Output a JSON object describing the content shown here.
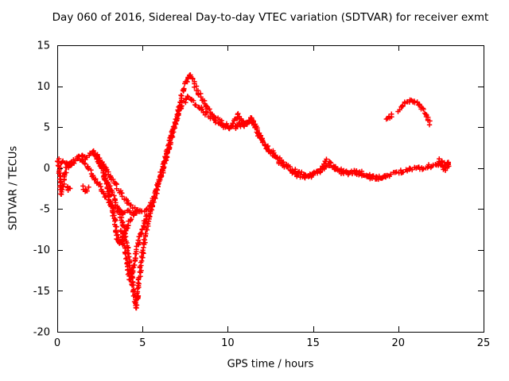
{
  "chart_data": {
    "type": "scatter",
    "title": "Day 060 of 2016, Sidereal Day-to-day VTEC variation (SDTVAR) for receiver exmt",
    "xlabel": "GPS time / hours",
    "ylabel": "SDTVAR / TECUs",
    "xlim": [
      0,
      25
    ],
    "ylim": [
      -20,
      15
    ],
    "xticks": [
      0,
      5,
      10,
      15,
      20,
      25
    ],
    "yticks": [
      -20,
      -15,
      -10,
      -5,
      0,
      5,
      10,
      15
    ],
    "grid": false,
    "legend": "none",
    "marker": "plus",
    "color": "#ff0000",
    "axis_color": "#000000",
    "series": [
      {
        "name": "upper-main-trace",
        "jitter": 2.4,
        "points": [
          [
            0.1,
            0.3
          ],
          [
            0.3,
            0.9
          ],
          [
            0.5,
            0.6
          ],
          [
            0.7,
            0.1
          ],
          [
            0.9,
            0.6
          ],
          [
            1.1,
            1.0
          ],
          [
            1.3,
            1.3
          ],
          [
            1.5,
            1.6
          ],
          [
            1.7,
            1.2
          ],
          [
            1.9,
            1.6
          ],
          [
            2.1,
            2.0
          ],
          [
            2.3,
            1.6
          ],
          [
            2.5,
            1.0
          ],
          [
            2.7,
            0.4
          ],
          [
            2.9,
            -0.2
          ],
          [
            3.1,
            -1.0
          ],
          [
            3.4,
            -2.0
          ],
          [
            3.7,
            -3.0
          ],
          [
            4.0,
            -3.8
          ],
          [
            4.3,
            -4.6
          ],
          [
            4.6,
            -5.1
          ],
          [
            4.9,
            -5.4
          ],
          [
            5.2,
            -5.2
          ],
          [
            5.5,
            -4.4
          ],
          [
            5.8,
            -3.0
          ],
          [
            6.0,
            -1.6
          ],
          [
            6.2,
            -0.2
          ],
          [
            6.4,
            1.4
          ],
          [
            6.6,
            3.0
          ],
          [
            6.8,
            4.6
          ],
          [
            7.0,
            6.2
          ],
          [
            7.2,
            7.8
          ],
          [
            7.4,
            9.4
          ],
          [
            7.6,
            10.6
          ],
          [
            7.75,
            11.4
          ],
          [
            7.9,
            11.0
          ],
          [
            8.1,
            10.1
          ],
          [
            8.3,
            9.1
          ],
          [
            8.6,
            8.0
          ],
          [
            8.9,
            7.0
          ],
          [
            9.2,
            6.3
          ],
          [
            9.5,
            5.8
          ],
          [
            9.8,
            5.3
          ],
          [
            10.1,
            5.0
          ],
          [
            10.4,
            5.1
          ],
          [
            10.7,
            5.3
          ],
          [
            11.0,
            5.2
          ],
          [
            11.2,
            5.6
          ],
          [
            11.4,
            6.0
          ],
          [
            11.6,
            5.3
          ],
          [
            11.8,
            4.3
          ],
          [
            12.0,
            3.4
          ],
          [
            12.3,
            2.6
          ],
          [
            12.6,
            1.8
          ],
          [
            12.9,
            1.1
          ],
          [
            13.2,
            0.5
          ],
          [
            13.5,
            0.0
          ],
          [
            13.8,
            -0.5
          ],
          [
            14.1,
            -0.8
          ],
          [
            14.5,
            -1.0
          ],
          [
            14.9,
            -0.9
          ],
          [
            15.3,
            -0.5
          ],
          [
            15.6,
            0.2
          ],
          [
            15.8,
            0.9
          ],
          [
            16.0,
            0.6
          ],
          [
            16.3,
            0.1
          ],
          [
            16.6,
            -0.3
          ],
          [
            17.0,
            -0.5
          ],
          [
            17.4,
            -0.4
          ],
          [
            17.8,
            -0.6
          ],
          [
            18.2,
            -0.9
          ],
          [
            18.6,
            -1.1
          ],
          [
            19.0,
            -1.1
          ],
          [
            19.4,
            -0.9
          ],
          [
            19.8,
            -0.6
          ],
          [
            20.2,
            -0.4
          ],
          [
            20.6,
            -0.2
          ],
          [
            21.0,
            -0.1
          ],
          [
            21.4,
            0.0
          ],
          [
            21.8,
            0.2
          ],
          [
            22.2,
            0.4
          ],
          [
            22.6,
            0.7
          ],
          [
            22.9,
            0.5
          ]
        ]
      },
      {
        "name": "deep-dip-trace",
        "jitter": 2.2,
        "points": [
          [
            2.1,
            1.8
          ],
          [
            2.4,
            0.8
          ],
          [
            2.7,
            -0.4
          ],
          [
            3.0,
            -1.8
          ],
          [
            3.2,
            -2.9
          ],
          [
            3.4,
            -4.0
          ],
          [
            3.6,
            -5.2
          ],
          [
            3.8,
            -6.6
          ],
          [
            4.0,
            -8.4
          ],
          [
            4.2,
            -10.8
          ],
          [
            4.4,
            -13.8
          ],
          [
            4.55,
            -16.2
          ],
          [
            4.62,
            -17.2
          ],
          [
            4.72,
            -15.4
          ],
          [
            4.85,
            -12.8
          ],
          [
            5.0,
            -10.4
          ],
          [
            5.15,
            -8.4
          ],
          [
            5.3,
            -6.8
          ],
          [
            5.5,
            -5.1
          ],
          [
            5.7,
            -3.6
          ],
          [
            5.9,
            -2.1
          ],
          [
            6.1,
            -0.6
          ],
          [
            6.3,
            0.9
          ],
          [
            6.5,
            2.4
          ],
          [
            6.7,
            3.9
          ],
          [
            6.9,
            5.3
          ],
          [
            7.1,
            6.5
          ],
          [
            7.3,
            7.5
          ],
          [
            7.5,
            8.2
          ],
          [
            7.7,
            8.6
          ],
          [
            7.9,
            8.3
          ],
          [
            8.1,
            7.9
          ],
          [
            8.4,
            7.3
          ],
          [
            8.7,
            6.7
          ],
          [
            9.0,
            6.1
          ],
          [
            9.3,
            5.7
          ],
          [
            9.6,
            5.3
          ],
          [
            9.9,
            5.0
          ],
          [
            10.2,
            4.9
          ],
          [
            10.5,
            5.0
          ],
          [
            10.8,
            5.2
          ],
          [
            11.1,
            5.4
          ],
          [
            11.4,
            5.7
          ],
          [
            11.6,
            5.0
          ],
          [
            11.8,
            4.1
          ],
          [
            12.0,
            3.3
          ],
          [
            12.3,
            2.5
          ],
          [
            12.6,
            1.9
          ],
          [
            12.9,
            1.3
          ],
          [
            13.2,
            0.8
          ],
          [
            13.5,
            0.3
          ],
          [
            13.8,
            -0.1
          ],
          [
            14.1,
            -0.5
          ],
          [
            14.5,
            -0.8
          ],
          [
            14.9,
            -0.8
          ],
          [
            15.3,
            -0.4
          ],
          [
            15.7,
            0.1
          ],
          [
            16.0,
            0.3
          ],
          [
            16.3,
            -0.1
          ],
          [
            16.7,
            -0.5
          ],
          [
            17.1,
            -0.6
          ],
          [
            17.5,
            -0.5
          ],
          [
            17.9,
            -0.8
          ],
          [
            18.3,
            -1.1
          ],
          [
            18.7,
            -1.2
          ],
          [
            19.1,
            -1.2
          ],
          [
            19.5,
            -1.0
          ]
        ]
      },
      {
        "name": "mid-dip-branch",
        "jitter": 2.2,
        "points": [
          [
            2.3,
            1.5
          ],
          [
            2.6,
            0.2
          ],
          [
            2.8,
            -1.4
          ],
          [
            3.0,
            -3.0
          ],
          [
            3.2,
            -4.6
          ],
          [
            3.35,
            -6.2
          ],
          [
            3.45,
            -7.6
          ],
          [
            3.55,
            -8.7
          ],
          [
            3.65,
            -9.2
          ],
          [
            3.8,
            -8.9
          ],
          [
            3.95,
            -8.2
          ],
          [
            4.1,
            -7.3
          ],
          [
            4.3,
            -6.3
          ],
          [
            4.5,
            -5.6
          ],
          [
            4.7,
            -5.2
          ]
        ]
      },
      {
        "name": "second-dip-branch",
        "jitter": 2.0,
        "points": [
          [
            3.7,
            -7.5
          ],
          [
            3.85,
            -8.8
          ],
          [
            4.0,
            -10.2
          ],
          [
            4.1,
            -11.6
          ],
          [
            4.2,
            -12.8
          ],
          [
            4.3,
            -13.7
          ],
          [
            4.4,
            -13.2
          ],
          [
            4.5,
            -12.0
          ],
          [
            4.6,
            -10.6
          ],
          [
            4.75,
            -9.2
          ],
          [
            4.9,
            -8.0
          ],
          [
            5.05,
            -7.0
          ],
          [
            5.2,
            -6.2
          ],
          [
            5.4,
            -5.4
          ]
        ]
      },
      {
        "name": "descending-strand",
        "jitter": 2.0,
        "points": [
          [
            1.2,
            1.4
          ],
          [
            1.5,
            0.8
          ],
          [
            1.8,
            0.0
          ],
          [
            2.1,
            -0.9
          ],
          [
            2.4,
            -1.9
          ],
          [
            2.7,
            -3.0
          ],
          [
            3.0,
            -4.0
          ],
          [
            3.3,
            -4.8
          ],
          [
            3.6,
            -5.3
          ],
          [
            3.9,
            -5.5
          ],
          [
            4.2,
            -5.3
          ],
          [
            4.5,
            -5.6
          ]
        ]
      },
      {
        "name": "left-streak",
        "jitter": 3.0,
        "points": [
          [
            0.05,
            1.0
          ],
          [
            0.1,
            0.0
          ],
          [
            0.15,
            -1.2
          ],
          [
            0.2,
            -2.4
          ],
          [
            0.25,
            -3.2
          ],
          [
            0.35,
            -2.2
          ],
          [
            0.45,
            -0.8
          ],
          [
            0.55,
            0.2
          ],
          [
            0.7,
            0.4
          ],
          [
            0.85,
            0.7
          ],
          [
            1.0,
            0.6
          ]
        ]
      },
      {
        "name": "left-blob",
        "jitter": 1.8,
        "points": [
          [
            0.55,
            -2.2
          ],
          [
            0.65,
            -2.7
          ],
          [
            0.75,
            -2.4
          ]
        ]
      },
      {
        "name": "blob-near-1p6",
        "jitter": 1.8,
        "points": [
          [
            1.5,
            -2.2
          ],
          [
            1.6,
            -2.7
          ],
          [
            1.7,
            -2.9
          ],
          [
            1.8,
            -2.5
          ]
        ]
      },
      {
        "name": "bump-10p5",
        "jitter": 1.6,
        "points": [
          [
            10.3,
            5.4
          ],
          [
            10.45,
            6.0
          ],
          [
            10.6,
            6.5
          ],
          [
            10.75,
            6.1
          ],
          [
            10.9,
            5.6
          ]
        ]
      },
      {
        "name": "right-arc-start",
        "jitter": 1.4,
        "points": [
          [
            19.35,
            5.9
          ],
          [
            19.5,
            6.2
          ],
          [
            19.65,
            6.5
          ]
        ]
      },
      {
        "name": "right-arc",
        "jitter": 1.6,
        "points": [
          [
            20.0,
            7.0
          ],
          [
            20.2,
            7.5
          ],
          [
            20.4,
            7.9
          ],
          [
            20.6,
            8.2
          ],
          [
            20.8,
            8.3
          ],
          [
            21.0,
            8.1
          ],
          [
            21.2,
            7.8
          ],
          [
            21.4,
            7.3
          ],
          [
            21.6,
            6.6
          ],
          [
            21.75,
            5.9
          ],
          [
            21.85,
            5.4
          ]
        ]
      },
      {
        "name": "end-cluster",
        "jitter": 2.6,
        "points": [
          [
            22.3,
            0.4
          ],
          [
            22.45,
            0.9
          ],
          [
            22.6,
            0.4
          ],
          [
            22.75,
            -0.1
          ],
          [
            22.9,
            0.7
          ],
          [
            23.0,
            0.3
          ]
        ]
      }
    ]
  }
}
